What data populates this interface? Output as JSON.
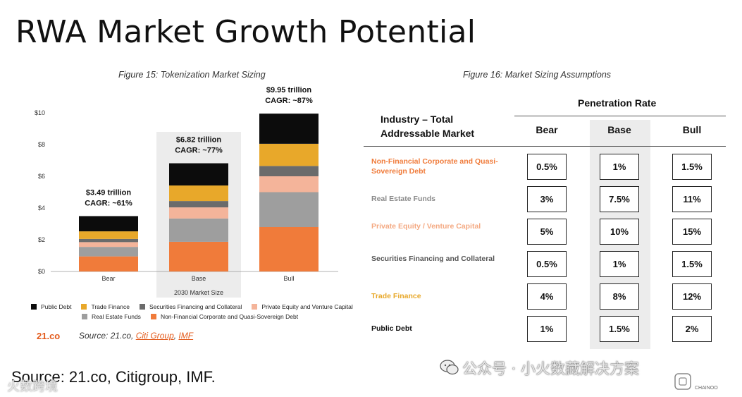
{
  "title": "RWA Market Growth Potential",
  "figure15_caption": "Figure 15: Tokenization Market Sizing",
  "figure16_caption": "Figure 16: Market Sizing Assumptions",
  "colors": {
    "public_debt": "#0c0c0c",
    "trade_finance": "#e8a82a",
    "securities_financing": "#6b6b6b",
    "private_equity": "#f4b49a",
    "real_estate": "#9e9e9e",
    "non_financial": "#f07b3a",
    "brand_orange": "#e35a1b"
  },
  "chart_data": {
    "type": "bar",
    "stacked": true,
    "categories": [
      "Bear",
      "Base",
      "Bull"
    ],
    "series": [
      {
        "name": "Non-Financial Corporate and Quasi-Sovereign Debt",
        "color_key": "non_financial",
        "values": [
          0.95,
          1.87,
          2.8
        ]
      },
      {
        "name": "Real Estate Funds",
        "color_key": "real_estate",
        "values": [
          0.6,
          1.47,
          2.2
        ]
      },
      {
        "name": "Private Equity and Venture Capital",
        "color_key": "private_equity",
        "values": [
          0.3,
          0.7,
          1.0
        ]
      },
      {
        "name": "Securities Financing and Collateral",
        "color_key": "securities_financing",
        "values": [
          0.2,
          0.4,
          0.65
        ]
      },
      {
        "name": "Trade Finance",
        "color_key": "trade_finance",
        "values": [
          0.48,
          0.98,
          1.4
        ]
      },
      {
        "name": "Public Debt",
        "color_key": "public_debt",
        "values": [
          0.96,
          1.4,
          1.9
        ]
      }
    ],
    "totals": [
      {
        "line1": "$3.49 trillion",
        "line2": "CAGR: ~61%",
        "value": 3.49
      },
      {
        "line1": "$6.82  trillion",
        "line2": "CAGR: ~77%",
        "value": 6.82
      },
      {
        "line1": "$9.95  trillion",
        "line2": "CAGR: ~87%",
        "value": 9.95
      }
    ],
    "yticks": [
      "$0",
      "$2",
      "$4",
      "$6",
      "$8",
      "$10"
    ],
    "ylim": [
      0,
      10
    ],
    "highlight_label": "2030 Market Size",
    "legend_placement": "bottom",
    "grid": false
  },
  "legend_rows": [
    [
      "Public Debt",
      "Trade Finance",
      "Securities Financing and Collateral",
      "Private Equity and Venture Capital"
    ],
    [
      "Real Estate Funds",
      "Non-Financial Corporate and Quasi-Sovereign Debt"
    ]
  ],
  "legend_color_keys": [
    [
      "public_debt",
      "trade_finance",
      "securities_financing",
      "private_equity"
    ],
    [
      "real_estate",
      "non_financial"
    ]
  ],
  "source_brand": "21.co",
  "source_prefix": "Source: 21.co, ",
  "source_link1": "Citi Group",
  "source_sep": ", ",
  "source_link2": "IMF",
  "bottom_source": "Source: 21.co, Citigroup, IMF.",
  "table": {
    "penetration_header": "Penetration Rate",
    "industry_header": "Industry – Total Addressable Market",
    "columns": [
      "Bear",
      "Base",
      "Bull"
    ],
    "rows": [
      {
        "label": "Non-Financial Corporate and Quasi-Sovereign Debt",
        "color": "#f07b3a",
        "values": [
          "0.5%",
          "1%",
          "1.5%"
        ]
      },
      {
        "label": "Real Estate Funds",
        "color": "#8a8a8a",
        "values": [
          "3%",
          "7.5%",
          "11%"
        ]
      },
      {
        "label": "Private Equity / Venture Capital",
        "color": "#f4a982",
        "values": [
          "5%",
          "10%",
          "15%"
        ]
      },
      {
        "label": "Securities Financing and Collateral",
        "color": "#555555",
        "values": [
          "0.5%",
          "1%",
          "1.5%"
        ]
      },
      {
        "label": "Trade Finance",
        "color": "#e8a82a",
        "values": [
          "4%",
          "8%",
          "12%"
        ]
      },
      {
        "label": "Public Debt",
        "color": "#111111",
        "values": [
          "1%",
          "1.5%",
          "2%"
        ]
      }
    ]
  },
  "watermark_cn": "公众号 · 小火数藏解决方案",
  "watermark_left": "火数跨境",
  "watermark_right": "CHAINOO"
}
